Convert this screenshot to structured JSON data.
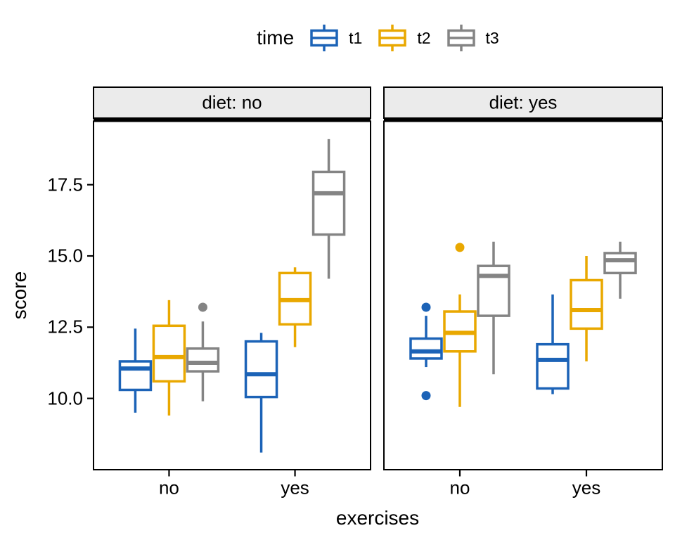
{
  "chart_data": {
    "type": "boxplot",
    "title": "",
    "xlabel": "exercises",
    "ylabel": "score",
    "x_categories": [
      "no",
      "yes"
    ],
    "y_tick_labels": [
      "10.0",
      "12.5",
      "15.0",
      "17.5"
    ],
    "y_tick_values": [
      10.0,
      12.5,
      15.0,
      17.5
    ],
    "ylim": [
      7.5,
      19.75
    ],
    "grid": "off",
    "legend": {
      "title": "time",
      "position": "top",
      "entries": [
        {
          "label": "t1",
          "color": "#1C63B7"
        },
        {
          "label": "t2",
          "color": "#E9A800"
        },
        {
          "label": "t3",
          "color": "#848484"
        }
      ]
    },
    "facet_variable": "diet",
    "facets": [
      {
        "label": "diet: no",
        "boxes": [
          {
            "exercises": "no",
            "time": "t1",
            "whisker_low": 9.5,
            "q1": 10.3,
            "median": 11.05,
            "q3": 11.3,
            "whisker_high": 12.45,
            "outliers": []
          },
          {
            "exercises": "no",
            "time": "t2",
            "whisker_low": 9.4,
            "q1": 10.6,
            "median": 11.45,
            "q3": 12.55,
            "whisker_high": 13.45,
            "outliers": []
          },
          {
            "exercises": "no",
            "time": "t3",
            "whisker_low": 9.9,
            "q1": 10.95,
            "median": 11.25,
            "q3": 11.75,
            "whisker_high": 12.7,
            "outliers": [
              13.2
            ]
          },
          {
            "exercises": "yes",
            "time": "t1",
            "whisker_low": 8.1,
            "q1": 10.05,
            "median": 10.85,
            "q3": 12.0,
            "whisker_high": 12.3,
            "outliers": []
          },
          {
            "exercises": "yes",
            "time": "t2",
            "whisker_low": 11.8,
            "q1": 12.6,
            "median": 13.45,
            "q3": 14.4,
            "whisker_high": 14.6,
            "outliers": []
          },
          {
            "exercises": "yes",
            "time": "t3",
            "whisker_low": 14.2,
            "q1": 15.75,
            "median": 17.2,
            "q3": 17.95,
            "whisker_high": 19.1,
            "outliers": []
          }
        ]
      },
      {
        "label": "diet: yes",
        "boxes": [
          {
            "exercises": "no",
            "time": "t1",
            "whisker_low": 11.1,
            "q1": 11.4,
            "median": 11.65,
            "q3": 12.1,
            "whisker_high": 12.9,
            "outliers": [
              13.2,
              10.1
            ]
          },
          {
            "exercises": "no",
            "time": "t2",
            "whisker_low": 9.7,
            "q1": 11.65,
            "median": 12.3,
            "q3": 13.05,
            "whisker_high": 13.65,
            "outliers": [
              15.3
            ]
          },
          {
            "exercises": "no",
            "time": "t3",
            "whisker_low": 10.85,
            "q1": 12.9,
            "median": 14.3,
            "q3": 14.65,
            "whisker_high": 15.5,
            "outliers": []
          },
          {
            "exercises": "yes",
            "time": "t1",
            "whisker_low": 10.15,
            "q1": 10.35,
            "median": 11.35,
            "q3": 11.9,
            "whisker_high": 13.65,
            "outliers": []
          },
          {
            "exercises": "yes",
            "time": "t2",
            "whisker_low": 11.3,
            "q1": 12.45,
            "median": 13.1,
            "q3": 14.15,
            "whisker_high": 15.0,
            "outliers": []
          },
          {
            "exercises": "yes",
            "time": "t3",
            "whisker_low": 13.5,
            "q1": 14.4,
            "median": 14.85,
            "q3": 15.1,
            "whisker_high": 15.5,
            "outliers": []
          }
        ]
      }
    ],
    "colors": {
      "strip_fill": "#EBEBEB",
      "panel_border": "#000000",
      "background": "#FFFFFF",
      "text": "#000000"
    }
  }
}
